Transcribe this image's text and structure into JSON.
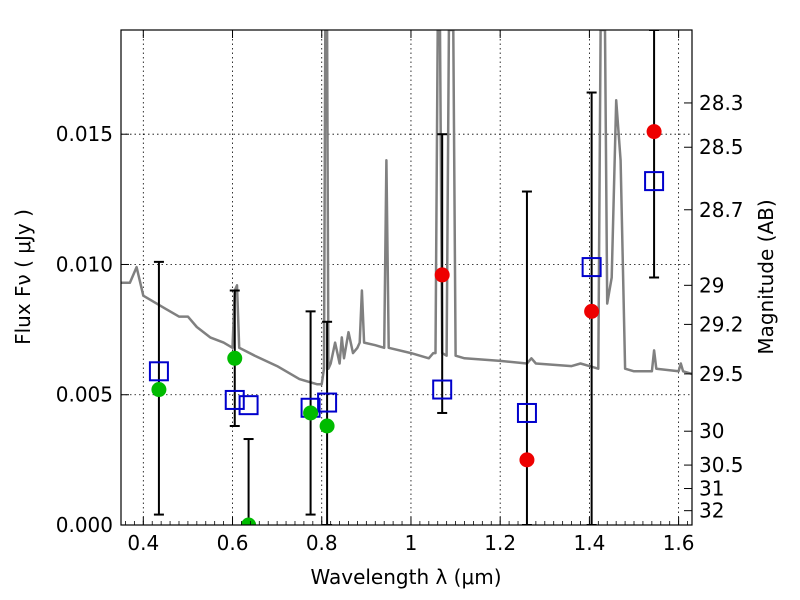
{
  "chart_data": {
    "type": "scatter",
    "xlabel": "Wavelength  λ (μm)",
    "ylabel_left": "Flux  Fν ( μJy )",
    "ylabel_right": "Magnitude (AB)",
    "xlim": [
      0.35,
      1.63
    ],
    "ylim": [
      0.0,
      0.019
    ],
    "x_ticks": [
      0.4,
      0.6,
      0.8,
      1.0,
      1.2,
      1.4,
      1.6
    ],
    "x_tick_labels": [
      "0.4",
      "0.6",
      "0.8",
      "1",
      "1.2",
      "1.4",
      "1.6"
    ],
    "y_ticks": [
      0.0,
      0.005,
      0.01,
      0.015
    ],
    "y_tick_labels": [
      "0.000",
      "0.005",
      "0.010",
      "0.015"
    ],
    "mag_ticks": [
      {
        "flux": 0.0162,
        "label": "28.3"
      },
      {
        "flux": 0.0145,
        "label": "28.5"
      },
      {
        "flux": 0.0121,
        "label": "28.7"
      },
      {
        "flux": 0.0092,
        "label": "29"
      },
      {
        "flux": 0.0077,
        "label": "29.2"
      },
      {
        "flux": 0.0058,
        "label": "29.5"
      },
      {
        "flux": 0.0036,
        "label": "30"
      },
      {
        "flux": 0.0023,
        "label": "30.5"
      },
      {
        "flux": 0.0014,
        "label": "31"
      },
      {
        "flux": 0.00055,
        "label": "32"
      }
    ],
    "grid": true,
    "colors": {
      "spectrum": "#808080",
      "model": "#0000cc",
      "detected_green": "#00bb00",
      "detected_red": "#ee0000",
      "errorbar": "#000000"
    },
    "model_spectrum": [
      [
        0.35,
        0.0093
      ],
      [
        0.37,
        0.0093
      ],
      [
        0.385,
        0.0099
      ],
      [
        0.4,
        0.0088
      ],
      [
        0.42,
        0.0086
      ],
      [
        0.45,
        0.0083
      ],
      [
        0.48,
        0.008
      ],
      [
        0.5,
        0.008
      ],
      [
        0.52,
        0.0076
      ],
      [
        0.55,
        0.0072
      ],
      [
        0.58,
        0.007
      ],
      [
        0.6,
        0.0068
      ],
      [
        0.605,
        0.009
      ],
      [
        0.61,
        0.0092
      ],
      [
        0.615,
        0.0068
      ],
      [
        0.65,
        0.0065
      ],
      [
        0.7,
        0.0061
      ],
      [
        0.75,
        0.0056
      ],
      [
        0.79,
        0.0054
      ],
      [
        0.8,
        0.0054
      ],
      [
        0.805,
        0.006
      ],
      [
        0.808,
        0.019
      ],
      [
        0.812,
        0.019
      ],
      [
        0.815,
        0.006
      ],
      [
        0.82,
        0.0062
      ],
      [
        0.83,
        0.007
      ],
      [
        0.835,
        0.0066
      ],
      [
        0.84,
        0.0062
      ],
      [
        0.845,
        0.0072
      ],
      [
        0.85,
        0.0064
      ],
      [
        0.86,
        0.0074
      ],
      [
        0.87,
        0.0066
      ],
      [
        0.88,
        0.0068
      ],
      [
        0.885,
        0.007
      ],
      [
        0.89,
        0.009
      ],
      [
        0.895,
        0.007
      ],
      [
        0.92,
        0.0069
      ],
      [
        0.94,
        0.0068
      ],
      [
        0.945,
        0.014
      ],
      [
        0.95,
        0.0068
      ],
      [
        1.0,
        0.0066
      ],
      [
        1.04,
        0.0064
      ],
      [
        1.05,
        0.0066
      ],
      [
        1.055,
        0.0066
      ],
      [
        1.06,
        0.019
      ],
      [
        1.065,
        0.019
      ],
      [
        1.07,
        0.0066
      ],
      [
        1.08,
        0.0065
      ],
      [
        1.085,
        0.019
      ],
      [
        1.095,
        0.019
      ],
      [
        1.1,
        0.0065
      ],
      [
        1.12,
        0.0064
      ],
      [
        1.2,
        0.0063
      ],
      [
        1.26,
        0.0062
      ],
      [
        1.27,
        0.0064
      ],
      [
        1.28,
        0.0062
      ],
      [
        1.36,
        0.0061
      ],
      [
        1.38,
        0.0062
      ],
      [
        1.4,
        0.0061
      ],
      [
        1.42,
        0.006
      ],
      [
        1.425,
        0.019
      ],
      [
        1.435,
        0.019
      ],
      [
        1.44,
        0.0085
      ],
      [
        1.45,
        0.0095
      ],
      [
        1.46,
        0.0163
      ],
      [
        1.47,
        0.014
      ],
      [
        1.48,
        0.006
      ],
      [
        1.5,
        0.0059
      ],
      [
        1.54,
        0.0059
      ],
      [
        1.545,
        0.0067
      ],
      [
        1.55,
        0.006
      ],
      [
        1.6,
        0.0059
      ],
      [
        1.605,
        0.0062
      ],
      [
        1.61,
        0.0059
      ],
      [
        1.63,
        0.0058
      ]
    ],
    "model_fluxes": [
      {
        "x": 0.435,
        "y": 0.0059
      },
      {
        "x": 0.605,
        "y": 0.0048
      },
      {
        "x": 0.636,
        "y": 0.0046
      },
      {
        "x": 0.775,
        "y": 0.0045
      },
      {
        "x": 0.812,
        "y": 0.0047
      },
      {
        "x": 1.07,
        "y": 0.0052
      },
      {
        "x": 1.26,
        "y": 0.0043
      },
      {
        "x": 1.405,
        "y": 0.0099
      },
      {
        "x": 1.545,
        "y": 0.0132
      }
    ],
    "observed": [
      {
        "x": 0.435,
        "y": 0.0052,
        "err_low": 0.0004,
        "err_high": 0.0101,
        "color": "green"
      },
      {
        "x": 0.605,
        "y": 0.0064,
        "err_low": 0.0038,
        "err_high": 0.009,
        "color": "green"
      },
      {
        "x": 0.636,
        "y": 0.0,
        "err_low": 0.0,
        "err_high": 0.0033,
        "color": "green"
      },
      {
        "x": 0.775,
        "y": 0.0043,
        "err_low": 0.0004,
        "err_high": 0.0082,
        "color": "green"
      },
      {
        "x": 0.812,
        "y": 0.0038,
        "err_low": 0.0,
        "err_high": 0.0078,
        "color": "green"
      },
      {
        "x": 1.07,
        "y": 0.0096,
        "err_low": 0.0043,
        "err_high": 0.015,
        "color": "red"
      },
      {
        "x": 1.26,
        "y": 0.0025,
        "err_low": 0.0,
        "err_high": 0.0128,
        "color": "red"
      },
      {
        "x": 1.405,
        "y": 0.0082,
        "err_low": 0.0,
        "err_high": 0.0166,
        "color": "red"
      },
      {
        "x": 1.545,
        "y": 0.0151,
        "err_low": 0.0095,
        "err_high": 0.019,
        "color": "red"
      }
    ]
  }
}
